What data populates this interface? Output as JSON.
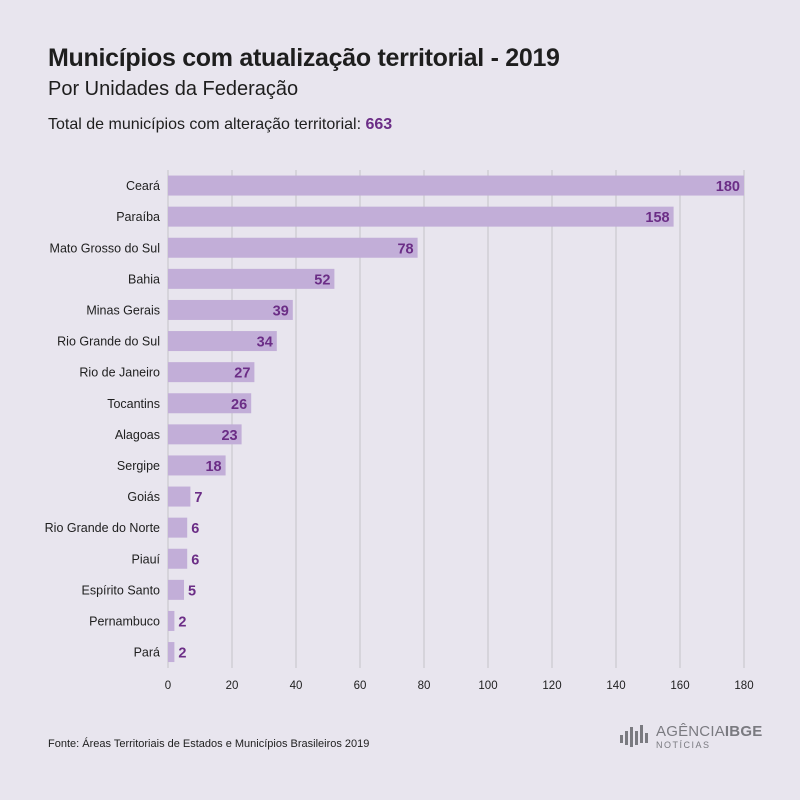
{
  "title": "Municípios com atualização territorial - 2019",
  "subtitle": "Por Unidades da Federação",
  "total": {
    "label": "Total de municípios com alteração territorial: ",
    "value": "663"
  },
  "source": "Fonte: Áreas Territoriais de Estados e Municípios Brasileiros 2019",
  "brand": {
    "name_a": "AGÊNCIA",
    "name_b": "IBGE",
    "sub": "NOTÍCIAS",
    "logo_icon": "ibge-logo-icon"
  },
  "colors": {
    "background": "#e8e5ee",
    "bar": "#c2aed8",
    "value_label": "#6b2d86",
    "grid": "#c4c2c8",
    "text": "#1e1e1e"
  },
  "chart_data": {
    "type": "bar",
    "orientation": "horizontal",
    "categories": [
      "Ceará",
      "Paraíba",
      "Mato Grosso do Sul",
      "Bahia",
      "Minas Gerais",
      "Rio Grande do Sul",
      "Rio de Janeiro",
      "Tocantins",
      "Alagoas",
      "Sergipe",
      "Goiás",
      "Rio Grande do Norte",
      "Piauí",
      "Espírito Santo",
      "Pernambuco",
      "Pará"
    ],
    "values": [
      180,
      158,
      78,
      52,
      39,
      34,
      27,
      26,
      23,
      18,
      7,
      6,
      6,
      5,
      2,
      2
    ],
    "xlim": [
      0,
      180
    ],
    "xticks": [
      0,
      20,
      40,
      60,
      80,
      100,
      120,
      140,
      160,
      180
    ],
    "grid": true,
    "data_labels": true,
    "legend": "none"
  }
}
